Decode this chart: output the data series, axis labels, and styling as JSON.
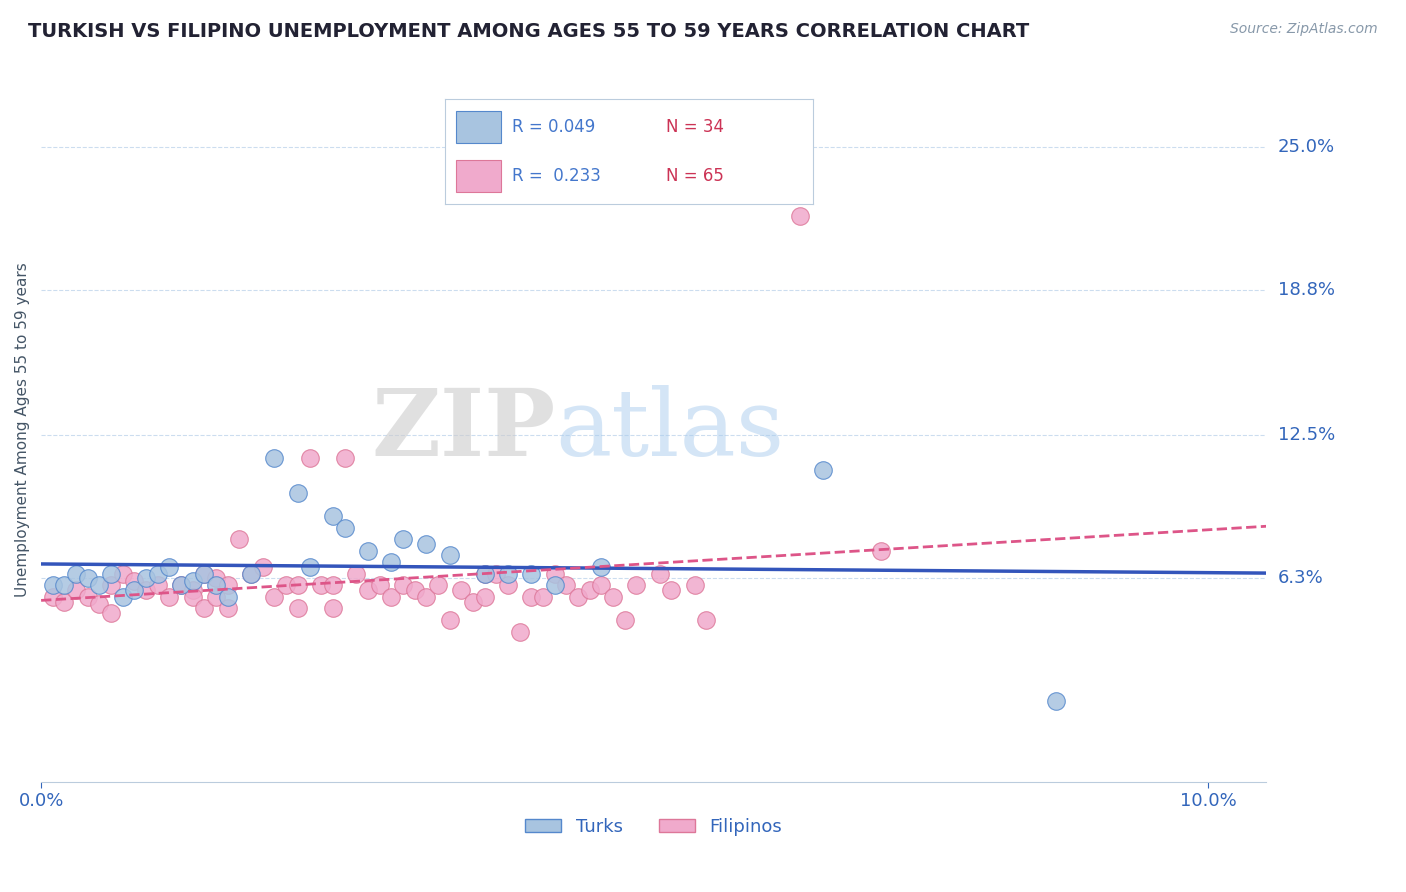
{
  "title": "TURKISH VS FILIPINO UNEMPLOYMENT AMONG AGES 55 TO 59 YEARS CORRELATION CHART",
  "source_text": "Source: ZipAtlas.com",
  "ylabel": "Unemployment Among Ages 55 to 59 years",
  "xlim": [
    0.0,
    0.105
  ],
  "ylim": [
    -0.025,
    0.28
  ],
  "ytick_labels": [
    "6.3%",
    "12.5%",
    "18.8%",
    "25.0%"
  ],
  "ytick_positions": [
    0.063,
    0.125,
    0.188,
    0.25
  ],
  "turks_color": "#A8C4E0",
  "turks_edge_color": "#5588CC",
  "filipinos_color": "#F0AACC",
  "filipinos_edge_color": "#DD7799",
  "turks_line_color": "#3355BB",
  "filipinos_line_color": "#DD5588",
  "turks_R": 0.049,
  "turks_N": 34,
  "filipinos_R": 0.233,
  "filipinos_N": 65,
  "legend_color": "#4477CC",
  "grid_color": "#CCDDEF",
  "axis_color": "#BBCCDD",
  "title_color": "#222233",
  "ylabel_color": "#445566",
  "label_color": "#3366BB",
  "background_color": "#FFFFFF",
  "turks_x": [
    0.001,
    0.002,
    0.003,
    0.004,
    0.005,
    0.006,
    0.007,
    0.008,
    0.009,
    0.01,
    0.011,
    0.012,
    0.013,
    0.014,
    0.015,
    0.016,
    0.018,
    0.02,
    0.022,
    0.023,
    0.025,
    0.026,
    0.028,
    0.03,
    0.031,
    0.033,
    0.035,
    0.038,
    0.04,
    0.042,
    0.044,
    0.048,
    0.067,
    0.087
  ],
  "turks_y": [
    0.06,
    0.06,
    0.065,
    0.063,
    0.06,
    0.065,
    0.055,
    0.058,
    0.063,
    0.065,
    0.068,
    0.06,
    0.062,
    0.065,
    0.06,
    0.055,
    0.065,
    0.115,
    0.1,
    0.068,
    0.09,
    0.085,
    0.075,
    0.07,
    0.08,
    0.078,
    0.073,
    0.065,
    0.065,
    0.065,
    0.06,
    0.068,
    0.11,
    0.01
  ],
  "filipinos_x": [
    0.001,
    0.002,
    0.003,
    0.004,
    0.005,
    0.006,
    0.006,
    0.007,
    0.008,
    0.009,
    0.01,
    0.011,
    0.012,
    0.013,
    0.013,
    0.014,
    0.014,
    0.015,
    0.015,
    0.016,
    0.016,
    0.017,
    0.018,
    0.019,
    0.02,
    0.021,
    0.022,
    0.022,
    0.023,
    0.024,
    0.025,
    0.025,
    0.026,
    0.027,
    0.028,
    0.029,
    0.03,
    0.031,
    0.032,
    0.033,
    0.034,
    0.035,
    0.036,
    0.037,
    0.038,
    0.038,
    0.039,
    0.04,
    0.041,
    0.042,
    0.043,
    0.044,
    0.045,
    0.046,
    0.047,
    0.048,
    0.049,
    0.05,
    0.051,
    0.053,
    0.054,
    0.056,
    0.057,
    0.065,
    0.072
  ],
  "filipinos_y": [
    0.055,
    0.053,
    0.058,
    0.055,
    0.052,
    0.06,
    0.048,
    0.065,
    0.062,
    0.058,
    0.06,
    0.055,
    0.06,
    0.058,
    0.055,
    0.065,
    0.05,
    0.063,
    0.055,
    0.06,
    0.05,
    0.08,
    0.065,
    0.068,
    0.055,
    0.06,
    0.06,
    0.05,
    0.115,
    0.06,
    0.06,
    0.05,
    0.115,
    0.065,
    0.058,
    0.06,
    0.055,
    0.06,
    0.058,
    0.055,
    0.06,
    0.045,
    0.058,
    0.053,
    0.065,
    0.055,
    0.065,
    0.06,
    0.04,
    0.055,
    0.055,
    0.065,
    0.06,
    0.055,
    0.058,
    0.06,
    0.055,
    0.045,
    0.06,
    0.065,
    0.058,
    0.06,
    0.045,
    0.22,
    0.075
  ]
}
